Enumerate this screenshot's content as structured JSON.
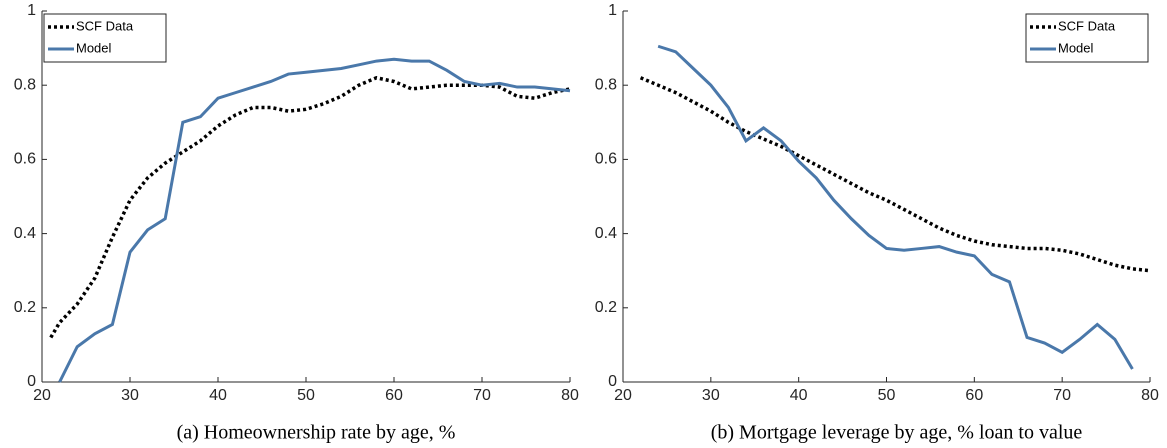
{
  "chart_data": [
    {
      "type": "line",
      "caption": "(a) Homeownership rate by age, %",
      "legend": "top-left",
      "x": [
        21,
        22,
        24,
        26,
        28,
        30,
        32,
        34,
        36,
        38,
        40,
        42,
        44,
        46,
        48,
        50,
        52,
        54,
        56,
        58,
        60,
        62,
        64,
        66,
        68,
        70,
        72,
        74,
        76,
        78,
        80
      ],
      "series": [
        {
          "name": "SCF Data",
          "color": "#000000",
          "line_style": "dotted",
          "values": [
            0.12,
            0.16,
            0.21,
            0.28,
            0.39,
            0.49,
            0.55,
            0.59,
            0.62,
            0.65,
            0.69,
            0.72,
            0.74,
            0.74,
            0.73,
            0.735,
            0.75,
            0.77,
            0.8,
            0.82,
            0.81,
            0.79,
            0.795,
            0.8,
            0.8,
            0.8,
            0.795,
            0.77,
            0.765,
            0.78,
            0.79
          ]
        },
        {
          "name": "Model",
          "color": "#4a78aa",
          "line_style": "solid",
          "values": [
            null,
            0,
            0.095,
            0.13,
            0.155,
            0.35,
            0.41,
            0.44,
            0.7,
            0.715,
            0.765,
            0.78,
            0.795,
            0.81,
            0.83,
            0.835,
            0.84,
            0.845,
            0.855,
            0.865,
            0.87,
            0.865,
            0.865,
            0.84,
            0.81,
            0.8,
            0.805,
            0.795,
            0.795,
            0.79,
            0.785
          ]
        }
      ],
      "xlim": [
        20,
        80
      ],
      "xticks": [
        20,
        30,
        40,
        50,
        60,
        70,
        80
      ],
      "ylim": [
        0,
        1
      ],
      "yticks": [
        0,
        0.2,
        0.4,
        0.6,
        0.8,
        1
      ]
    },
    {
      "type": "line",
      "caption": "(b) Mortgage leverage by age, % loan to value",
      "legend": "top-right",
      "x": [
        22,
        24,
        26,
        28,
        30,
        32,
        34,
        36,
        38,
        40,
        42,
        44,
        46,
        48,
        50,
        52,
        54,
        56,
        58,
        60,
        62,
        64,
        66,
        68,
        70,
        72,
        74,
        76,
        78,
        80
      ],
      "series": [
        {
          "name": "SCF Data",
          "color": "#000000",
          "line_style": "dotted",
          "values": [
            0.82,
            0.8,
            0.78,
            0.755,
            0.73,
            0.7,
            0.675,
            0.655,
            0.635,
            0.61,
            0.585,
            0.56,
            0.535,
            0.51,
            0.49,
            0.465,
            0.44,
            0.415,
            0.395,
            0.38,
            0.37,
            0.365,
            0.36,
            0.36,
            0.355,
            0.345,
            0.33,
            0.315,
            0.305,
            0.3
          ]
        },
        {
          "name": "Model",
          "color": "#4a78aa",
          "line_style": "solid",
          "values": [
            null,
            0.905,
            0.89,
            0.845,
            0.8,
            0.74,
            0.65,
            0.685,
            0.65,
            0.595,
            0.55,
            0.49,
            0.44,
            0.395,
            0.36,
            0.355,
            0.36,
            0.365,
            0.35,
            0.34,
            0.29,
            0.27,
            0.12,
            0.105,
            0.08,
            0.115,
            0.155,
            0.115,
            0.035,
            null
          ]
        }
      ],
      "xlim": [
        20,
        80
      ],
      "xticks": [
        20,
        30,
        40,
        50,
        60,
        70,
        80
      ],
      "ylim": [
        0,
        1
      ],
      "yticks": [
        0,
        0.2,
        0.4,
        0.6,
        0.8,
        1
      ]
    }
  ]
}
